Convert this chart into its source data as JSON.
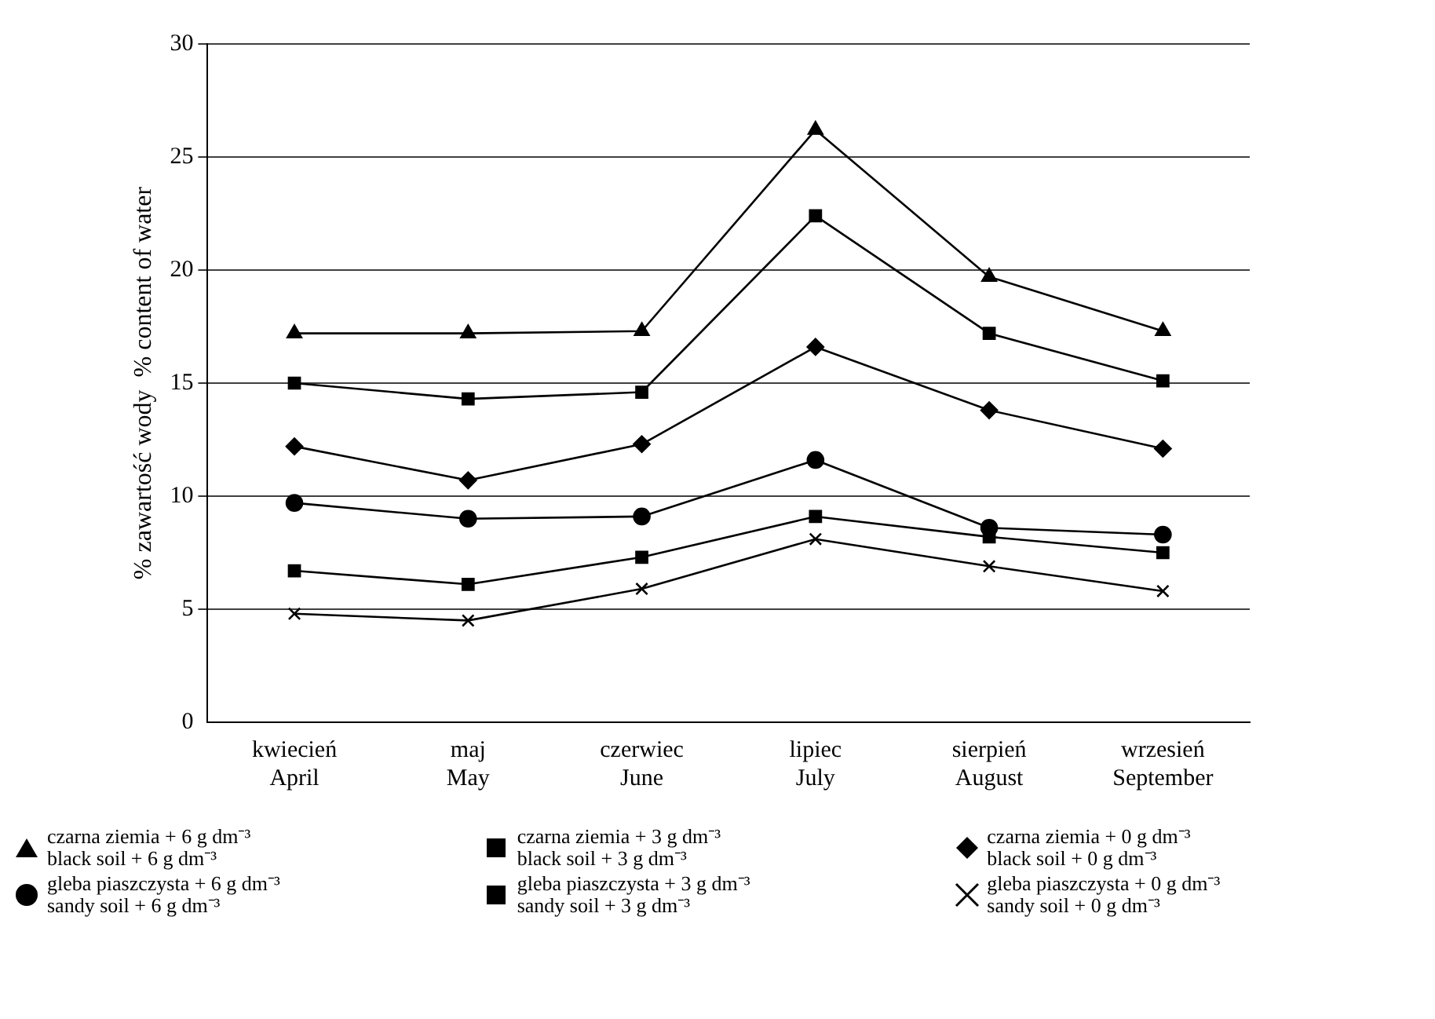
{
  "chart_data": {
    "type": "line",
    "ylabel": "% zawartość wody  % content of water",
    "categories": [
      "kwiecień\nApril",
      "maj\nMay",
      "czerwiec\nJune",
      "lipiec\nJuly",
      "sierpień\nAugust",
      "wrzesień\nSeptember"
    ],
    "ylim": [
      0,
      30
    ],
    "yticks": [
      0,
      5,
      10,
      15,
      20,
      25,
      30
    ],
    "grid": "y",
    "legend": "bottom",
    "line_style": "solid",
    "series": [
      {
        "name": "czarna ziemia + 6 g dm⁻³\nblack soil + 6 g dm⁻³",
        "color": "#000000",
        "marker": "triangle",
        "values": [
          17.2,
          17.2,
          17.3,
          26.2,
          19.7,
          17.3
        ]
      },
      {
        "name": "czarna ziemia + 3 g dm⁻³\nblack soil + 3 g dm⁻³",
        "color": "#000000",
        "marker": "square",
        "values": [
          15.0,
          14.3,
          14.6,
          22.4,
          17.2,
          15.1
        ]
      },
      {
        "name": "czarna ziemia + 0 g dm⁻³\nblack soil + 0 g dm⁻³",
        "color": "#000000",
        "marker": "diamond",
        "values": [
          12.2,
          10.7,
          12.3,
          16.6,
          13.8,
          12.1
        ]
      },
      {
        "name": "gleba piaszczysta + 6 g dm⁻³\nsandy soil + 6 g dm⁻³",
        "color": "#000000",
        "marker": "circle",
        "values": [
          9.7,
          9.0,
          9.1,
          11.6,
          8.6,
          8.3
        ]
      },
      {
        "name": "gleba piaszczysta + 3 g dm⁻³\nsandy soil + 3 g dm⁻³",
        "color": "#000000",
        "marker": "square",
        "values": [
          6.7,
          6.1,
          7.3,
          9.1,
          8.2,
          7.5
        ]
      },
      {
        "name": "gleba piaszczysta + 0 g dm⁻³\nsandy soil + 0 g dm⁻³",
        "color": "#000000",
        "marker": "cross",
        "values": [
          4.8,
          4.5,
          5.9,
          8.1,
          6.9,
          5.8
        ]
      }
    ]
  }
}
